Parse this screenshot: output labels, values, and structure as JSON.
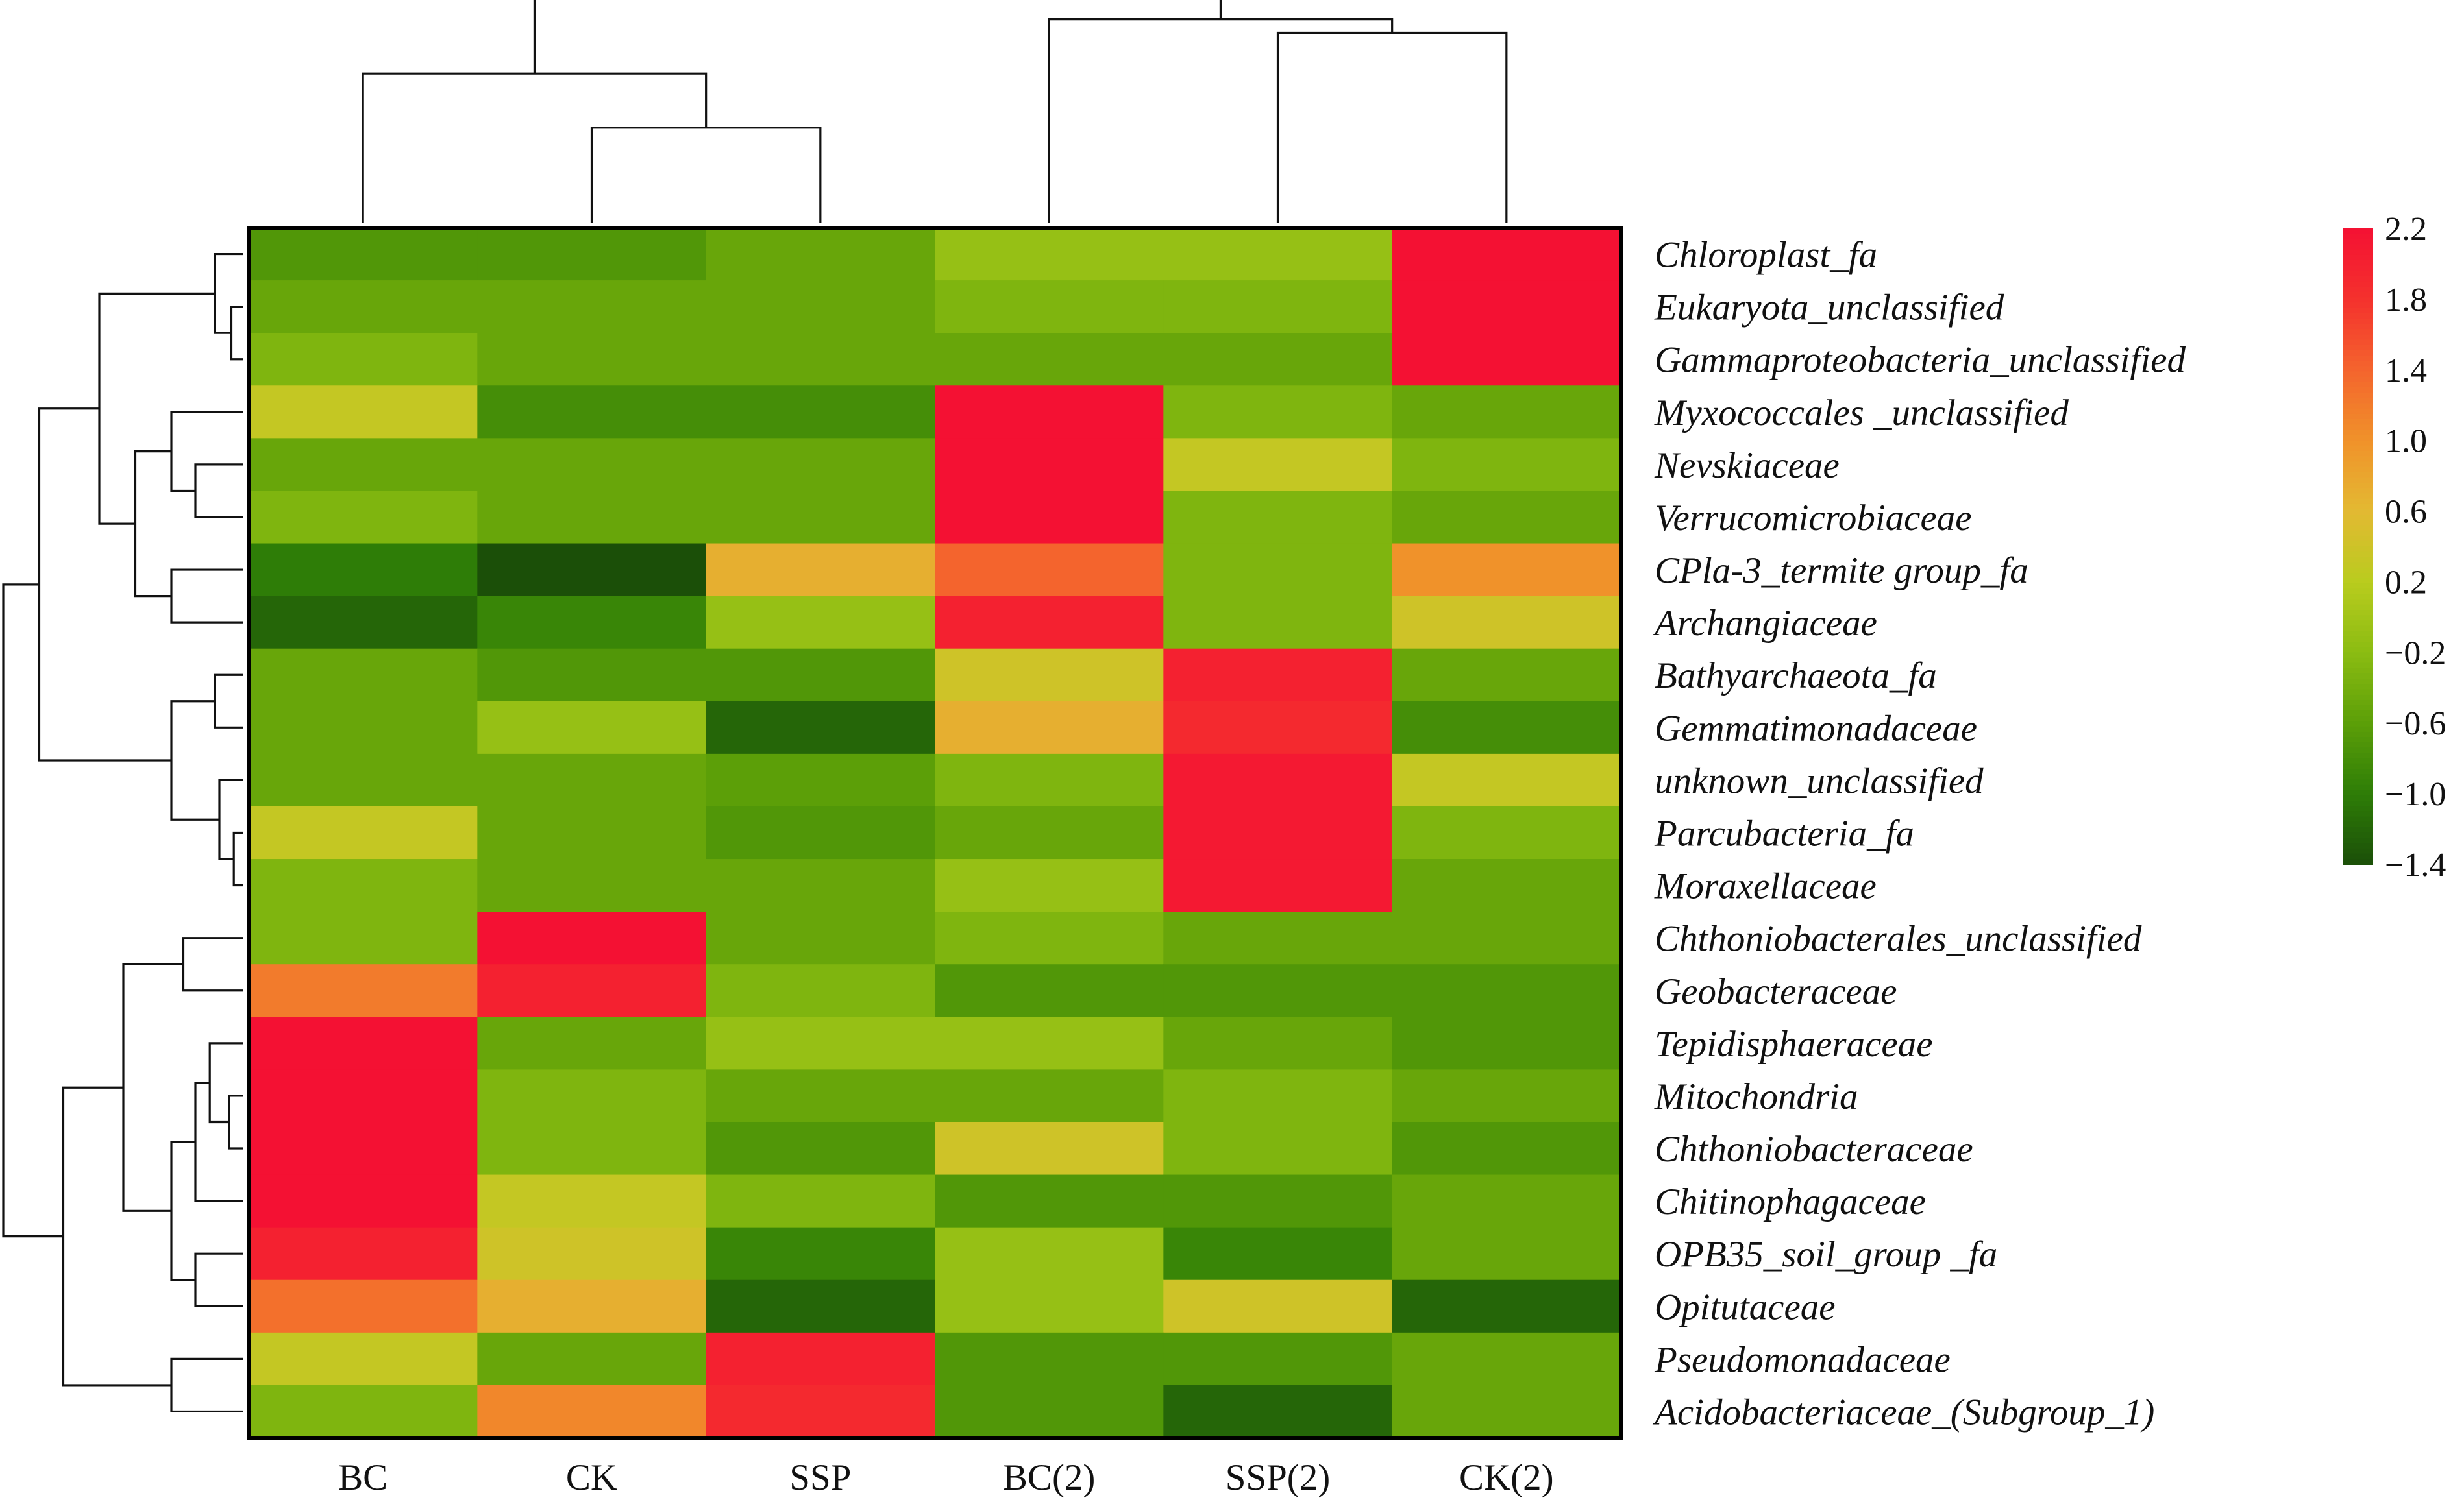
{
  "chart_data": {
    "type": "heatmap",
    "title": "",
    "xlabel": "",
    "ylabel": "",
    "columns": [
      "BC",
      "CK",
      "SSP",
      "BC(2)",
      "SSP(2)",
      "CK(2)"
    ],
    "rows": [
      "Chloroplast_fa",
      "Eukaryota_unclassified",
      "Gammaproteobacteria_unclassified",
      "Myxococcales _unclassified",
      "Nevskiaceae",
      "Verrucomicrobiaceae",
      "CPla-3_termite group_fa",
      "Archangiaceae",
      "Bathyarchaeota_fa",
      "Gemmatimonadaceae",
      "unknown_unclassified",
      "Parcubacteria_fa",
      "Moraxellaceae",
      "Chthoniobacterales_unclassified",
      "Geobacteraceae",
      "Tepidisphaeraceae",
      "Mitochondria",
      "Chthoniobacteraceae",
      "Chitinophagaceae",
      "OPB35_soil_group _fa",
      "Opitutaceae",
      "Pseudomonadaceae",
      "Acidobacteriaceae_(Subgroup_1)"
    ],
    "values": [
      [
        -0.7,
        -0.7,
        -0.5,
        -0.1,
        -0.1,
        2.2
      ],
      [
        -0.5,
        -0.5,
        -0.5,
        -0.3,
        -0.3,
        2.2
      ],
      [
        -0.3,
        -0.5,
        -0.5,
        -0.5,
        -0.5,
        2.2
      ],
      [
        0.3,
        -0.8,
        -0.8,
        2.2,
        -0.3,
        -0.5
      ],
      [
        -0.5,
        -0.5,
        -0.5,
        2.2,
        0.3,
        -0.3
      ],
      [
        -0.3,
        -0.5,
        -0.5,
        2.2,
        -0.3,
        -0.5
      ],
      [
        -1.0,
        -1.4,
        0.7,
        1.4,
        -0.3,
        1.0
      ],
      [
        -1.2,
        -0.9,
        -0.1,
        2.0,
        -0.3,
        0.4
      ],
      [
        -0.5,
        -0.7,
        -0.7,
        0.4,
        2.0,
        -0.5
      ],
      [
        -0.5,
        -0.1,
        -1.2,
        0.7,
        1.9,
        -0.8
      ],
      [
        -0.5,
        -0.5,
        -0.6,
        -0.3,
        2.1,
        0.3
      ],
      [
        0.3,
        -0.5,
        -0.7,
        -0.5,
        2.1,
        -0.3
      ],
      [
        -0.3,
        -0.5,
        -0.5,
        -0.1,
        2.1,
        -0.5
      ],
      [
        -0.3,
        2.2,
        -0.5,
        -0.3,
        -0.5,
        -0.5
      ],
      [
        1.2,
        2.0,
        -0.3,
        -0.7,
        -0.7,
        -0.7
      ],
      [
        2.2,
        -0.5,
        -0.1,
        -0.1,
        -0.5,
        -0.7
      ],
      [
        2.2,
        -0.3,
        -0.5,
        -0.5,
        -0.3,
        -0.5
      ],
      [
        2.2,
        -0.3,
        -0.7,
        0.4,
        -0.3,
        -0.7
      ],
      [
        2.2,
        0.3,
        -0.3,
        -0.7,
        -0.7,
        -0.5
      ],
      [
        2.0,
        0.4,
        -0.9,
        -0.1,
        -0.9,
        -0.5
      ],
      [
        1.3,
        0.7,
        -1.2,
        -0.1,
        0.4,
        -1.2
      ],
      [
        0.3,
        -0.5,
        2.0,
        -0.7,
        -0.7,
        -0.5
      ],
      [
        -0.3,
        1.1,
        1.9,
        -0.7,
        -1.2,
        -0.5
      ]
    ],
    "color_scale": {
      "min": -1.4,
      "max": 2.2,
      "ticks": [
        "2.2",
        "1.8",
        "1.4",
        "1.0",
        "0.6",
        "0.2",
        "−0.2",
        "−0.6",
        "−1.0",
        "−1.4"
      ],
      "colors": [
        "#1b4f08",
        "#2e7d07",
        "#5c9f08",
        "#8bbc12",
        "#b9cc1e",
        "#e3b932",
        "#f0922a",
        "#f4642d",
        "#f4312d",
        "#f41133"
      ]
    },
    "grid": false,
    "legend_placement": "right",
    "row_dendrogram": true,
    "column_dendrogram": true
  }
}
